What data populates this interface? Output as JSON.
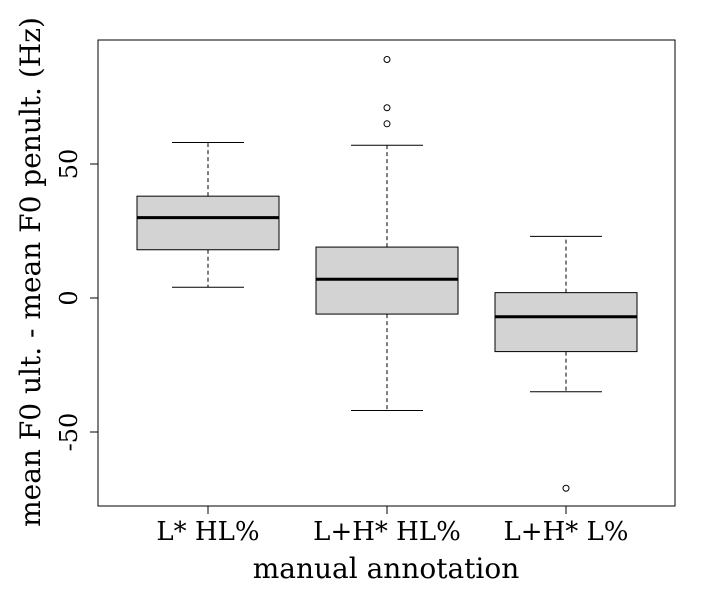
{
  "chart_data": {
    "type": "boxplot",
    "title": "",
    "xlabel": "manual annotation",
    "ylabel": "mean F0 ult. - mean F0 penult. (Hz)",
    "ylim": [
      -78,
      95
    ],
    "y_ticks": [
      -50,
      0,
      50
    ],
    "y_tick_labels": [
      "-50",
      "0",
      "50"
    ],
    "categories": [
      "L* HL%",
      "L+H* HL%",
      "L+H* L%"
    ],
    "boxes": [
      {
        "name": "L* HL%",
        "whisker_low": 4,
        "q1": 18,
        "median": 30,
        "q3": 38,
        "whisker_high": 58,
        "outliers": []
      },
      {
        "name": "L+H* HL%",
        "whisker_low": -42,
        "q1": -6,
        "median": 7,
        "q3": 19,
        "whisker_high": 57,
        "outliers": [
          65,
          71,
          89
        ]
      },
      {
        "name": "L+H* L%",
        "whisker_low": -35,
        "q1": -20,
        "median": -7,
        "q3": 2,
        "whisker_high": 23,
        "outliers": [
          -71
        ]
      }
    ],
    "box_fill": "#d3d3d3",
    "line_color": "#000000"
  }
}
